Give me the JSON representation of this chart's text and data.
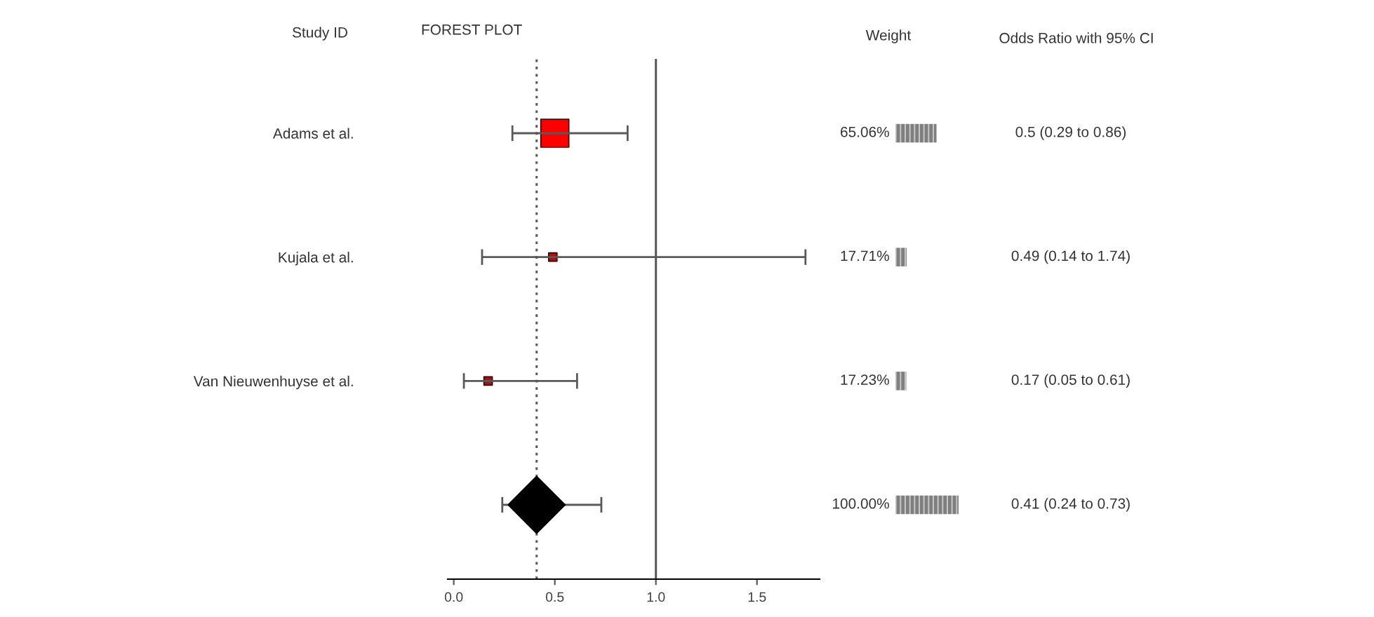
{
  "chart_data": [
    {
      "type": "scatter",
      "orientation": "horizontal",
      "title": "FOREST PLOT",
      "ylabel": "Study ID",
      "categories": [
        "Adams et al.",
        "Kujala et al.",
        "Van Nieuwenhuyse et al.",
        null
      ],
      "xlim": [
        -0.03,
        1.81
      ],
      "xticks": [
        {
          "value": 0,
          "label": "0.0"
        },
        {
          "value": 0.5,
          "label": "0.5"
        },
        {
          "value": 1,
          "label": "1.0"
        },
        {
          "value": 1.5,
          "label": "1.5"
        }
      ],
      "series": [
        {
          "type": "bubble",
          "marker": "square",
          "colors": [
            "#ff0000",
            "#a31515",
            "#a31515",
            null
          ],
          "values": [
            0.5,
            0.49,
            0.17,
            null
          ],
          "sizes": [
            1,
            0.09,
            0.09,
            null
          ],
          "errors": [
            [
              0.29,
              0.86
            ],
            [
              0.14,
              1.74
            ],
            [
              0.05,
              0.61
            ],
            null
          ]
        },
        {
          "type": "scatter",
          "marker": "diamond",
          "color": "#000000",
          "values": [
            null,
            null,
            null,
            0.41
          ],
          "errors": [
            null,
            null,
            null,
            [
              0.24,
              0.73
            ]
          ]
        }
      ],
      "ref_lines": [
        {
          "axis": "x",
          "value": 1,
          "color": "#595959",
          "line_style": "solid"
        },
        {
          "axis": "x",
          "value": 0.41,
          "color": "#595959",
          "line_style": "dotted"
        }
      ]
    },
    {
      "type": "bar",
      "orientation": "horizontal",
      "title": "Weight",
      "categories": [
        null,
        null,
        null,
        null
      ],
      "values": [
        65.06,
        17.71,
        17.23,
        100.0
      ],
      "value_labels": [
        "65.06%",
        "17.71%",
        "17.23%",
        "100.00%"
      ],
      "color": "#7f7f7f",
      "xlim": [
        0,
        100
      ],
      "tick_labels": false
    },
    {
      "type": "other",
      "title": "Odds Ratio with 95% CI",
      "annotations": [
        "0.5 (0.29 to 0.86)",
        "0.49 (0.14 to 1.74)",
        "0.17 (0.05 to 0.61)",
        "0.41 (0.24 to 0.73)"
      ]
    }
  ]
}
